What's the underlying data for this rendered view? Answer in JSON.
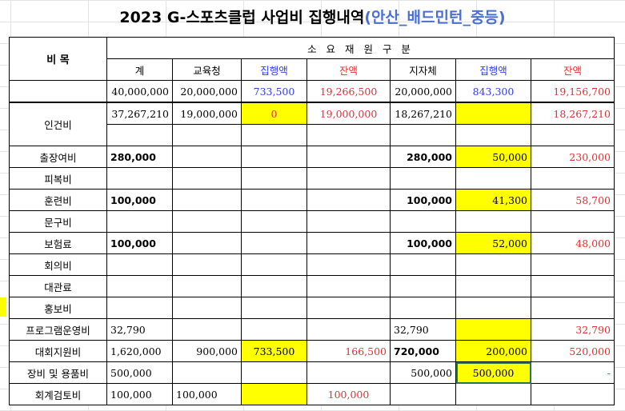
{
  "title": {
    "main": "2023 G-스포츠클럽 사업비 집행내역",
    "sub": "(안산_배드민턴_중등)"
  },
  "header": {
    "item": "비 목",
    "group": "소 요 재 원 구 분",
    "cols": [
      "계",
      "교육청",
      "집행액",
      "잔액",
      "지자체",
      "집행액",
      "잔액"
    ]
  },
  "totals": [
    "40,000,000",
    "20,000,000",
    "733,500",
    "19,266,500",
    "20,000,000",
    "843,300",
    "19,156,700"
  ],
  "rows": [
    {
      "name": "인건비",
      "v": [
        "37,267,210",
        "19,000,000",
        "0",
        "19,000,000",
        "18,267,210",
        "",
        "18,267,210"
      ]
    },
    {
      "name": "출장여비",
      "v": [
        "280,000",
        "",
        "",
        "",
        "280,000",
        "50,000",
        "230,000"
      ]
    },
    {
      "name": "피복비",
      "v": [
        "",
        "",
        "",
        "",
        "",
        "",
        ""
      ]
    },
    {
      "name": "훈련비",
      "v": [
        "100,000",
        "",
        "",
        "",
        "100,000",
        "41,300",
        "58,700"
      ]
    },
    {
      "name": "문구비",
      "v": [
        "",
        "",
        "",
        "",
        "",
        "",
        ""
      ]
    },
    {
      "name": "보험료",
      "v": [
        "100,000",
        "",
        "",
        "",
        "100,000",
        "52,000",
        "48,000"
      ]
    },
    {
      "name": "회의비",
      "v": [
        "",
        "",
        "",
        "",
        "",
        "",
        ""
      ]
    },
    {
      "name": "대관료",
      "v": [
        "",
        "",
        "",
        "",
        "",
        "",
        ""
      ]
    },
    {
      "name": "홍보비",
      "v": [
        "",
        "",
        "",
        "",
        "",
        "",
        ""
      ]
    },
    {
      "name": "프로그램운영비",
      "v": [
        "32,790",
        "",
        "",
        "",
        "32,790",
        "",
        "32,790"
      ]
    },
    {
      "name": "대회지원비",
      "v": [
        "1,620,000",
        "900,000",
        "733,500",
        "166,500",
        "720,000",
        "200,000",
        "520,000"
      ]
    },
    {
      "name": "장비 및 용품비",
      "v": [
        "500,000",
        "",
        "",
        "",
        "500,000",
        "500,000",
        "-"
      ]
    },
    {
      "name": "회계검토비",
      "v": [
        "100,000",
        "100,000",
        "",
        "100,000",
        "",
        "",
        ""
      ]
    }
  ]
}
